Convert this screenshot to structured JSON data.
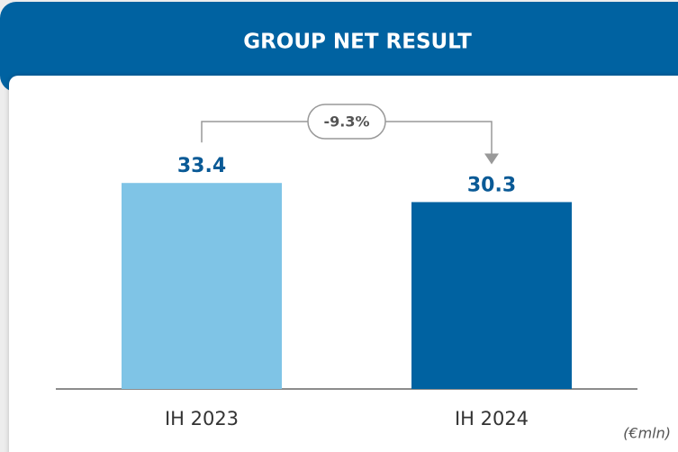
{
  "chart_data": {
    "type": "bar",
    "title": "GROUP NET RESULT",
    "categories": [
      "IH 2023",
      "IH 2024"
    ],
    "values": [
      33.4,
      30.3
    ],
    "colors": [
      "#7fc4e6",
      "#0062a1"
    ],
    "ylim": [
      0,
      40
    ],
    "annotation": "-9.3%",
    "unit_label": "(€mln)"
  }
}
